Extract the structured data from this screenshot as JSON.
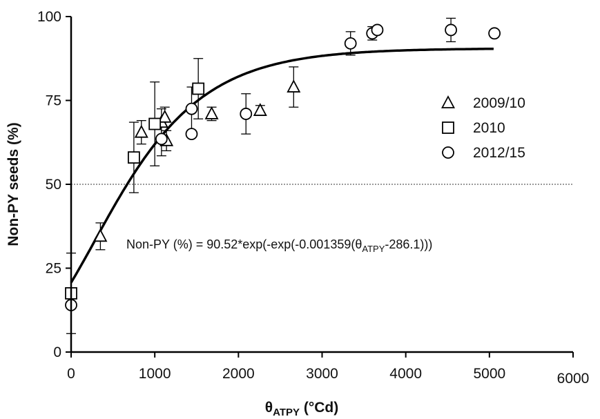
{
  "chart_data": {
    "type": "scatter",
    "title": "",
    "xlabel": {
      "symbol": "θ",
      "subscript": "ATPY",
      "unit": " (°Cd)"
    },
    "ylabel": "Non-PY seeds (%)",
    "xlim": [
      0,
      6000
    ],
    "ylim": [
      0,
      100
    ],
    "xticks": [
      "0",
      "1000",
      "2000",
      "3000",
      "4000",
      "5000",
      "6000"
    ],
    "xtick_values": [
      0,
      1000,
      2000,
      3000,
      4000,
      5000,
      6000
    ],
    "yticks": [
      "0",
      "25",
      "50",
      "75",
      "100"
    ],
    "ytick_values": [
      0,
      25,
      50,
      75,
      100
    ],
    "grid": false,
    "legend_position": "right",
    "reference_line": {
      "y": 50,
      "style": "dotted"
    },
    "equation": {
      "prefix": "Non-PY (%) = 90.52*exp(-exp(-0.001359(",
      "symbol": "θ",
      "subscript": "ATPY",
      "suffix": "-286.1)))"
    },
    "fit": {
      "a": 90.52,
      "b": 0.001359,
      "x0": 286.1,
      "x_range": [
        0,
        5050
      ]
    },
    "series": [
      {
        "name": "2009/10",
        "marker": "triangle",
        "points": [
          {
            "x": 350,
            "y": 34.5,
            "err": 4
          },
          {
            "x": 840,
            "y": 65.5,
            "err": 3.5
          },
          {
            "x": 1080,
            "y": 68.5,
            "err": 4
          },
          {
            "x": 1120,
            "y": 70,
            "err": 3
          },
          {
            "x": 1140,
            "y": 63,
            "err": 3
          },
          {
            "x": 1680,
            "y": 71,
            "err": 2
          },
          {
            "x": 2260,
            "y": 72,
            "err": 1.5
          },
          {
            "x": 2660,
            "y": 79,
            "err": 6
          }
        ]
      },
      {
        "name": "2010",
        "marker": "square",
        "points": [
          {
            "x": 0,
            "y": 17.5,
            "err": 12
          },
          {
            "x": 750,
            "y": 58,
            "err": 10.5
          },
          {
            "x": 1000,
            "y": 68,
            "err": 12.5
          },
          {
            "x": 1520,
            "y": 78.5,
            "err": 9
          }
        ]
      },
      {
        "name": "2012/15",
        "marker": "circle",
        "points": [
          {
            "x": 0,
            "y": 14,
            "err": 0
          },
          {
            "x": 1080,
            "y": 63.5,
            "err": 5
          },
          {
            "x": 1440,
            "y": 65,
            "err": 0
          },
          {
            "x": 1440,
            "y": 72.5,
            "err": 6.5
          },
          {
            "x": 2090,
            "y": 71,
            "err": 6
          },
          {
            "x": 3340,
            "y": 92,
            "err": 3.5
          },
          {
            "x": 3600,
            "y": 95,
            "err": 2
          },
          {
            "x": 3660,
            "y": 96,
            "err": 0
          },
          {
            "x": 4540,
            "y": 96,
            "err": 3.5
          },
          {
            "x": 5060,
            "y": 95,
            "err": 0
          }
        ]
      }
    ]
  }
}
